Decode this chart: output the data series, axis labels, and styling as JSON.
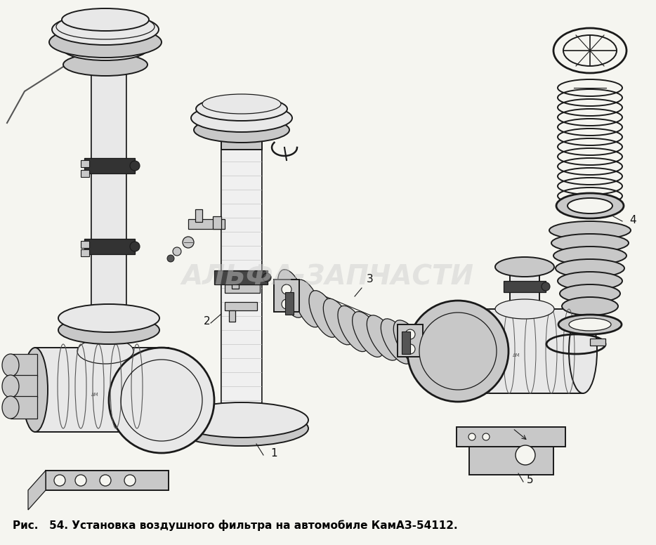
{
  "background_color": "#f5f5f0",
  "caption_prefix": "Рис.",
  "figure_number": "54.",
  "caption_text": "Установка воздушного фильтра на автомобиле КамАЗ-54112.",
  "watermark_text": "АЛЬФА-ЗАПЧАСТИ",
  "watermark_color": "#cccccc",
  "watermark_alpha": 0.45,
  "watermark_fontsize": 28,
  "caption_fontsize": 11,
  "fig_width": 9.34,
  "fig_height": 7.76,
  "dpi": 100,
  "edge_color": "#1a1a1a",
  "light_gray": "#e8e8e8",
  "mid_gray": "#c8c8c8",
  "dark_gray": "#555555"
}
